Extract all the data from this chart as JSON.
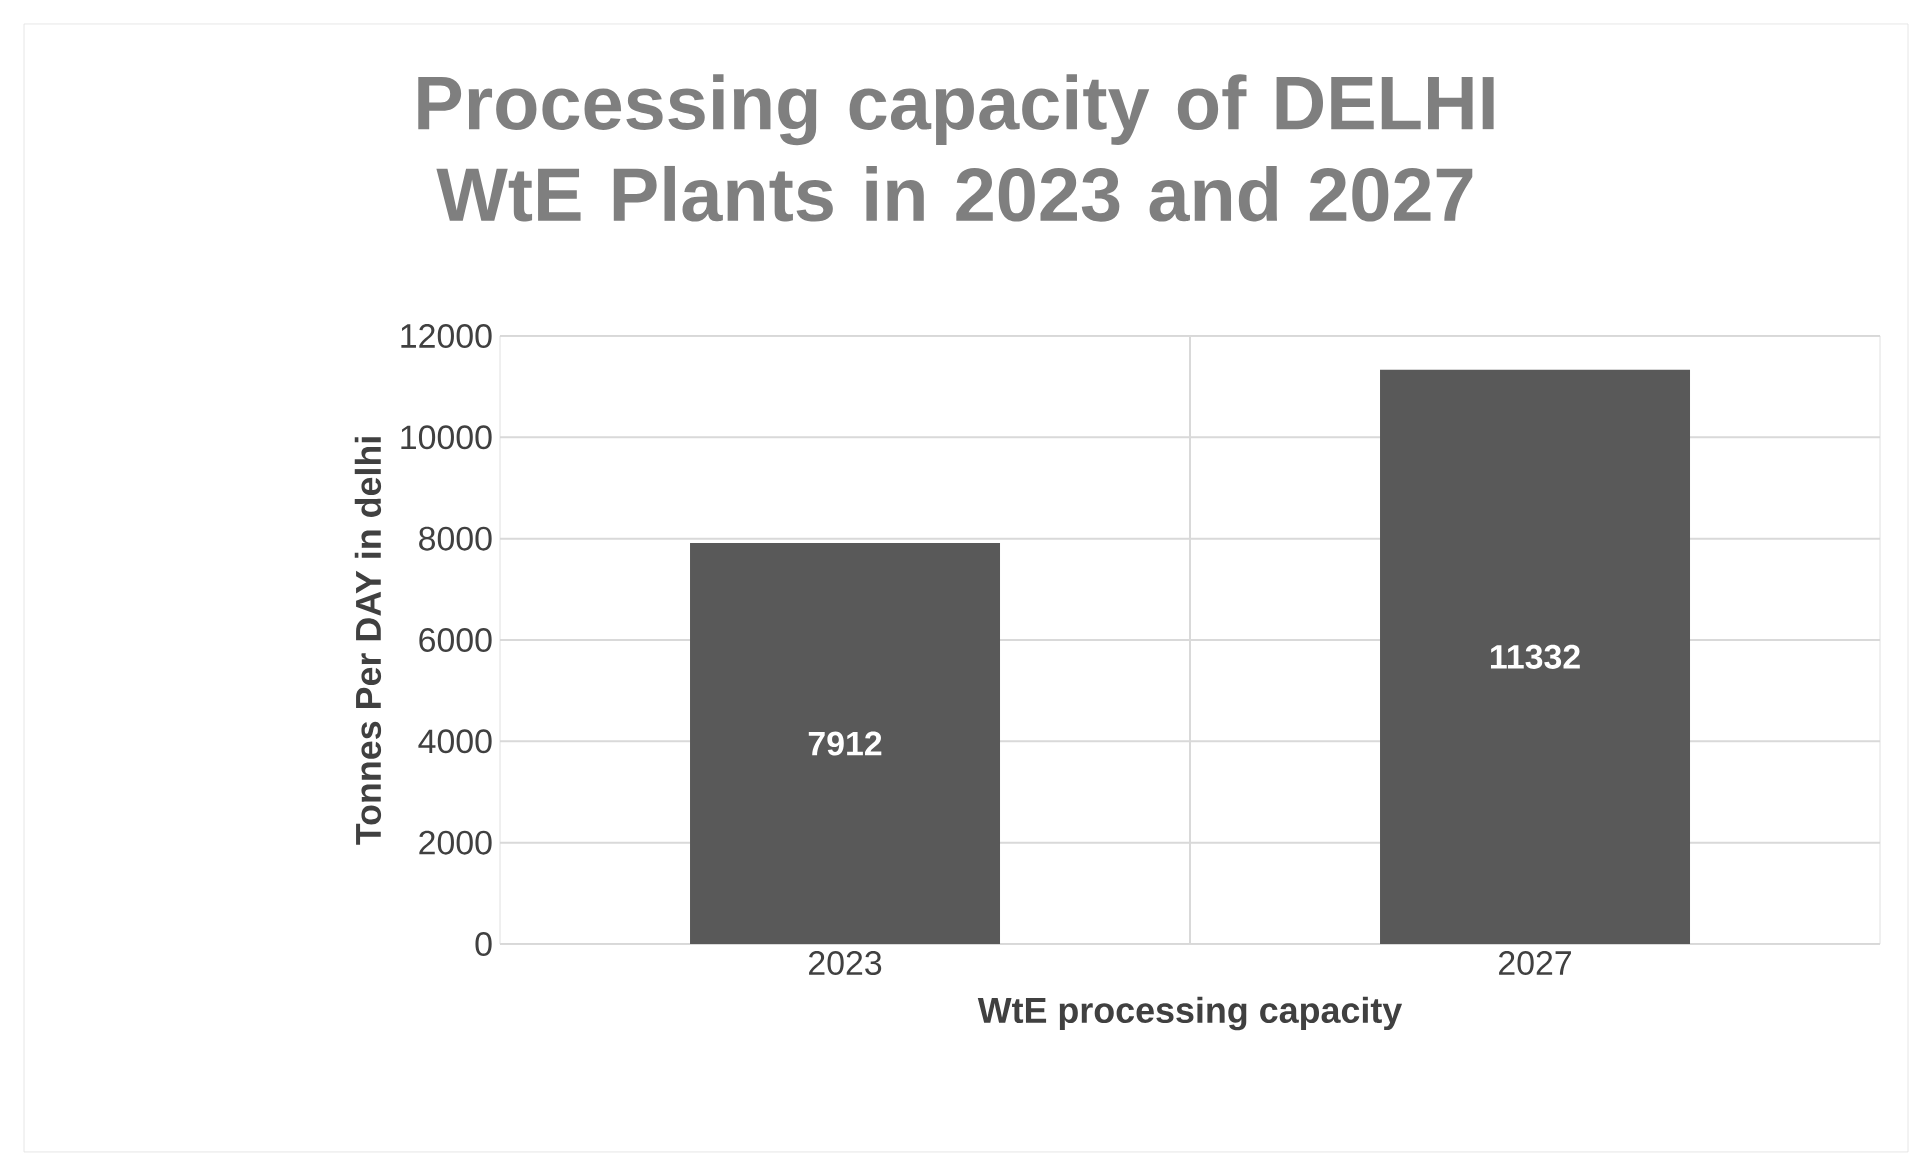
{
  "chart_data": {
    "type": "bar",
    "title": "Processing capacity of DELHI WtE Plants in 2023 and 2027",
    "xlabel": "WtE processing capacity",
    "ylabel": "Tonnes Per DAY in delhi",
    "categories": [
      "2023",
      "2027"
    ],
    "values": [
      7912,
      11332
    ],
    "color": "#595959",
    "ylim": [
      0,
      12000
    ],
    "yticks": [
      0,
      2000,
      4000,
      6000,
      8000,
      10000,
      12000
    ],
    "grid": true,
    "data_labels": true
  }
}
